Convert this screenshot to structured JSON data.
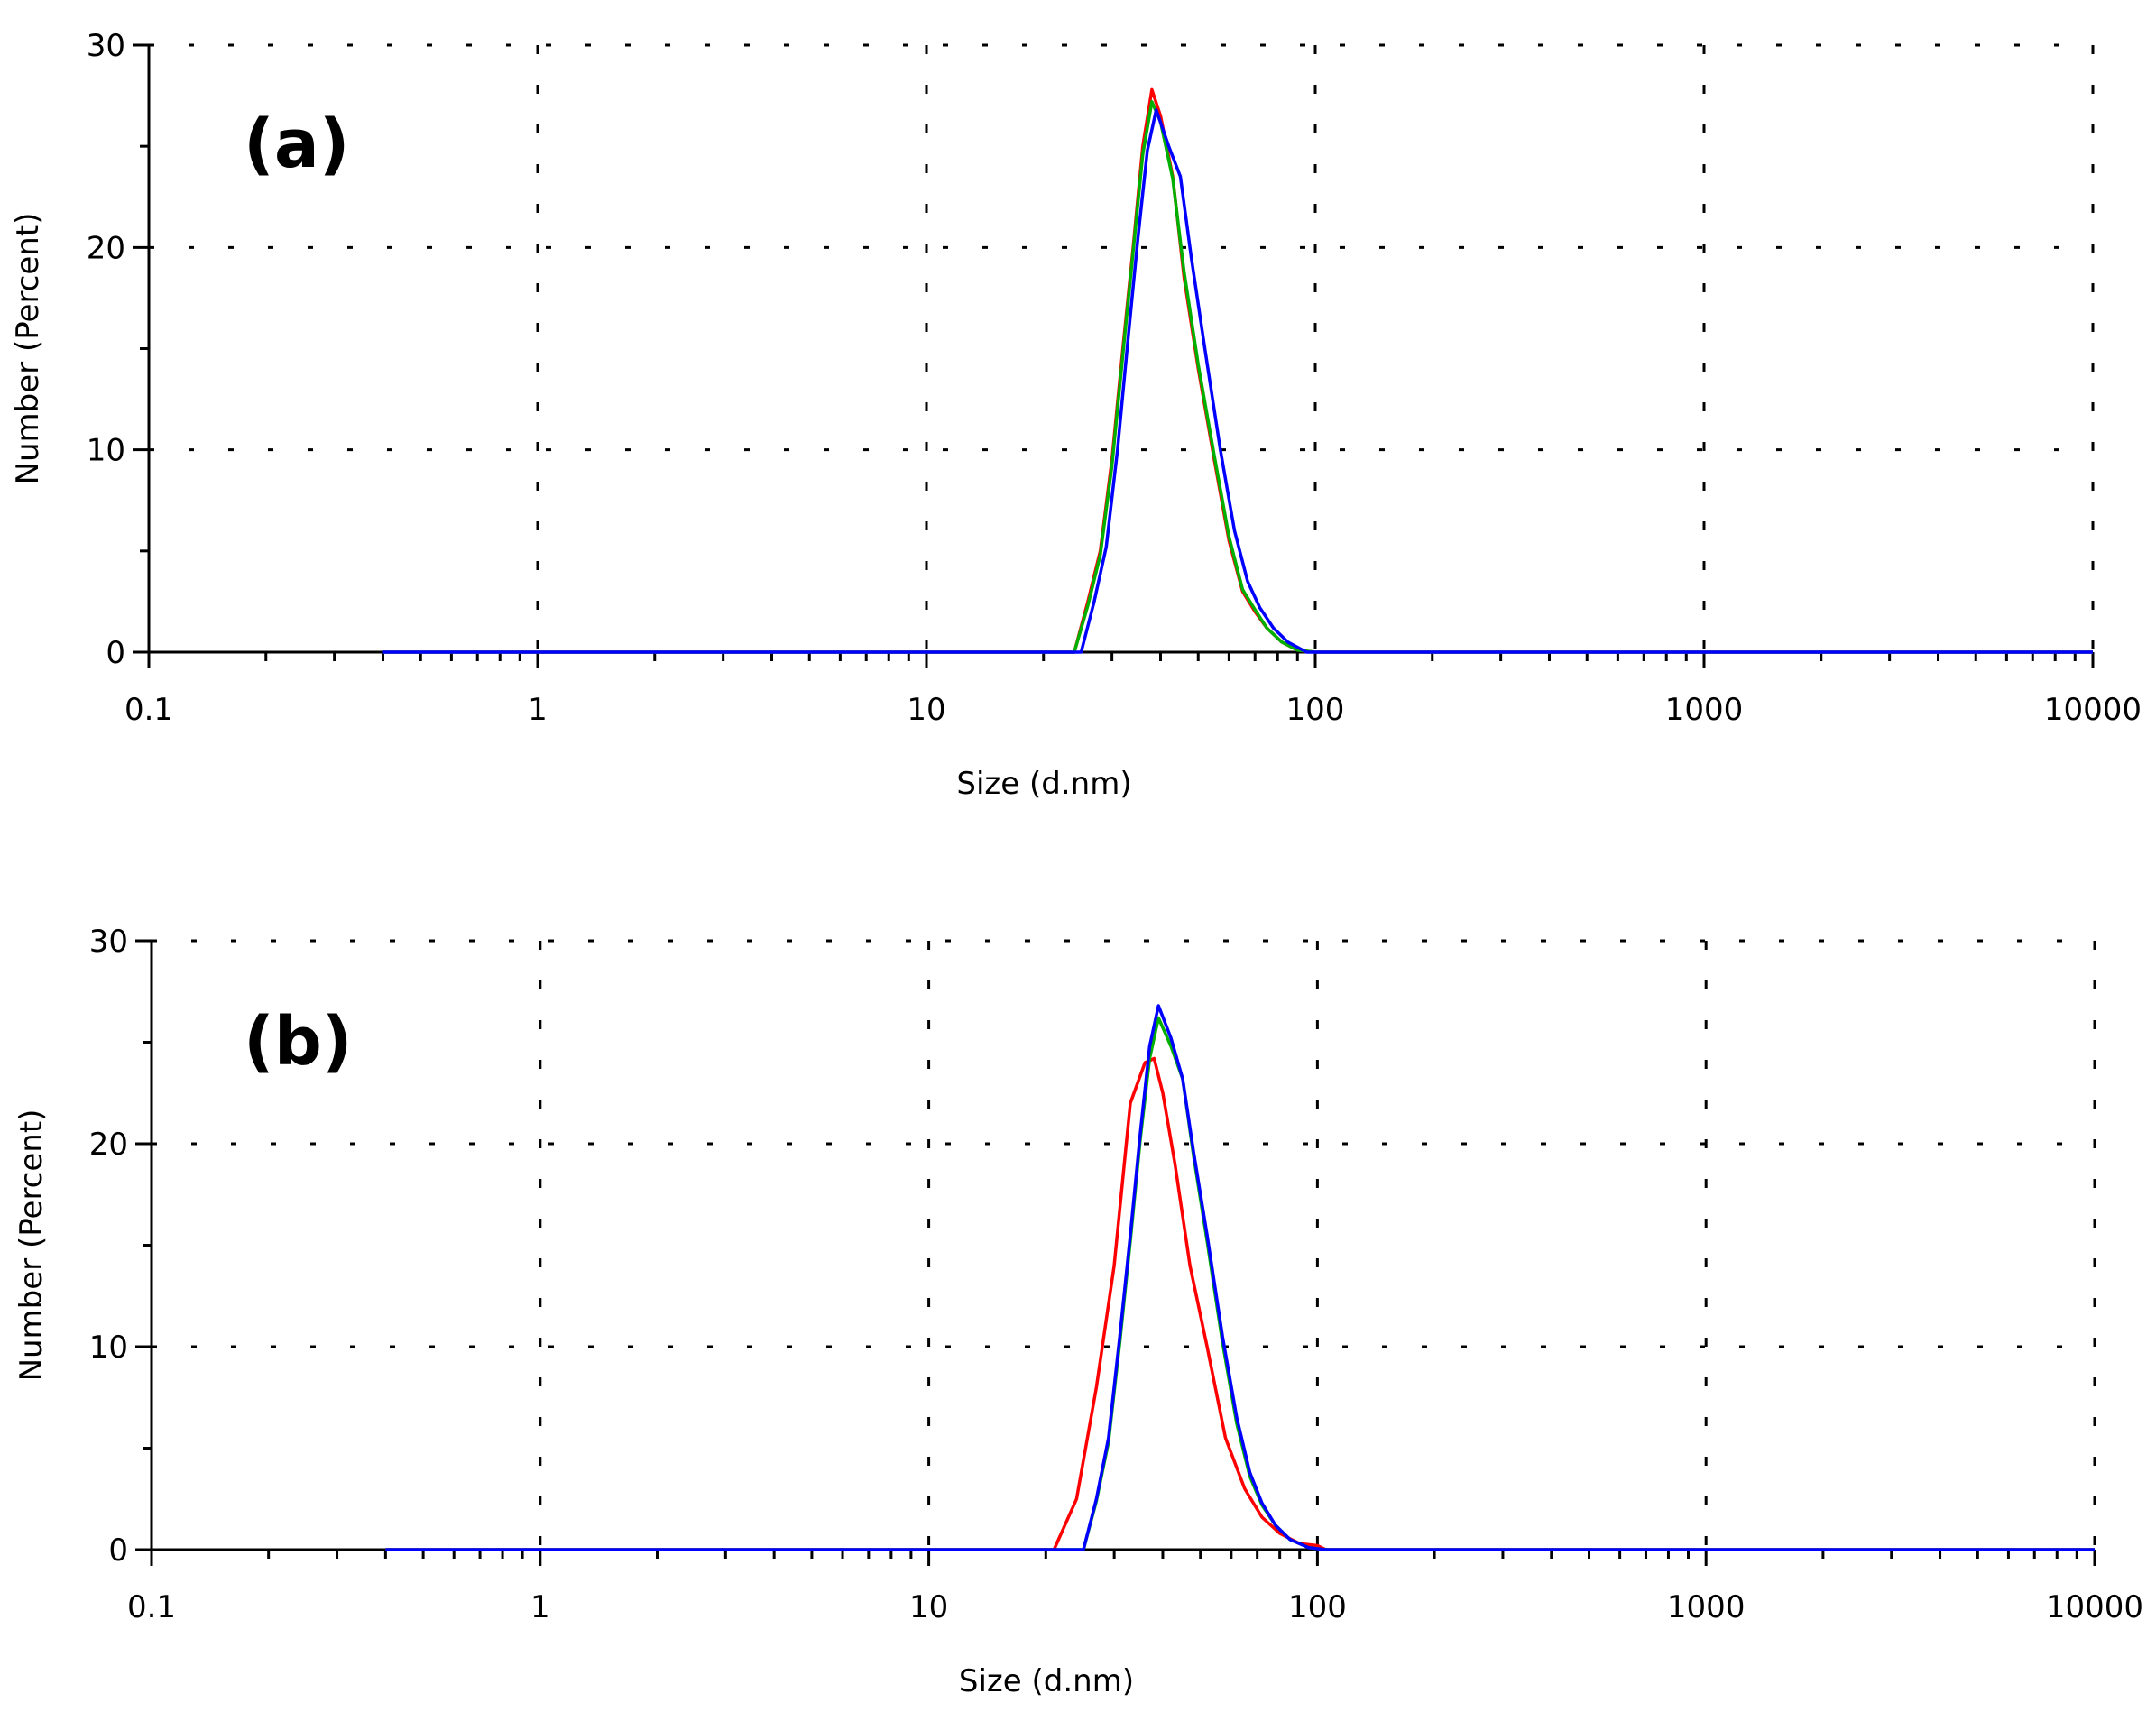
{
  "colors": {
    "red": "#ff0000",
    "green": "#00b000",
    "blue": "#0000ff",
    "grid": "#000000"
  },
  "chart_data": [
    {
      "type": "line",
      "panel_label": "(a)",
      "xlabel": "Size (d.nm)",
      "ylabel": "Number (Percent)",
      "xscale": "log",
      "xlim": [
        0.1,
        10000
      ],
      "ylim": [
        0,
        30
      ],
      "xticks": [
        0.1,
        1,
        10,
        100,
        1000,
        10000
      ],
      "xtick_labels": [
        "0.1",
        "1",
        "10",
        "100",
        "1000",
        "10000"
      ],
      "yticks": [
        0,
        10,
        20,
        30
      ],
      "ytick_labels": [
        "0",
        "10",
        "20",
        "30"
      ],
      "grid": true,
      "series": [
        {
          "color": "red",
          "x": [
            0.4,
            24,
            26,
            28,
            30,
            32,
            34,
            36,
            38,
            40,
            43,
            46,
            50,
            55,
            60,
            65,
            70,
            75,
            82,
            90,
            100,
            10000
          ],
          "y": [
            0,
            0,
            2.5,
            5,
            9.5,
            15,
            20,
            25,
            27.8,
            26.5,
            23.5,
            18.5,
            14,
            9.5,
            5.5,
            3,
            2,
            1.2,
            0.5,
            0.1,
            0,
            0
          ]
        },
        {
          "color": "green",
          "x": [
            0.4,
            24,
            26,
            28,
            30,
            32,
            34,
            36,
            38,
            40,
            43,
            46,
            50,
            55,
            60,
            65,
            70,
            75,
            82,
            90,
            100,
            10000
          ],
          "y": [
            0,
            0,
            2.3,
            4.8,
            9.2,
            14.7,
            19.8,
            24.6,
            27.2,
            26.2,
            23.4,
            18.8,
            14.2,
            9.7,
            5.7,
            3.1,
            2.1,
            1.2,
            0.5,
            0.1,
            0,
            0
          ]
        },
        {
          "color": "blue",
          "x": [
            0.4,
            25,
            27,
            29,
            31,
            33,
            35,
            37,
            39,
            42,
            45,
            48,
            52,
            57,
            62,
            67,
            72,
            78,
            85,
            95,
            10000
          ],
          "y": [
            0,
            0,
            2.5,
            5.2,
            10,
            15.5,
            20.5,
            24.8,
            26.8,
            25,
            23.5,
            19.5,
            15,
            10,
            6,
            3.5,
            2.2,
            1.2,
            0.5,
            0,
            0
          ]
        }
      ]
    },
    {
      "type": "line",
      "panel_label": "(b)",
      "xlabel": "Size (d.nm)",
      "ylabel": "Number (Percent)",
      "xscale": "log",
      "xlim": [
        0.1,
        10000
      ],
      "ylim": [
        0,
        30
      ],
      "xticks": [
        0.1,
        1,
        10,
        100,
        1000,
        10000
      ],
      "xtick_labels": [
        "0.1",
        "1",
        "10",
        "100",
        "1000",
        "10000"
      ],
      "yticks": [
        0,
        10,
        20,
        30
      ],
      "ytick_labels": [
        "0",
        "10",
        "20",
        "30"
      ],
      "grid": true,
      "series": [
        {
          "color": "red",
          "x": [
            0.4,
            21,
            24,
            27,
            30,
            33,
            36,
            38,
            40,
            43,
            47,
            52,
            58,
            65,
            72,
            80,
            90,
            100,
            105,
            10000
          ],
          "y": [
            0,
            0,
            2.5,
            8,
            14,
            22,
            24,
            24.2,
            22.5,
            19,
            14,
            10,
            5.5,
            3,
            1.6,
            0.8,
            0.3,
            0.2,
            0,
            0
          ]
        },
        {
          "color": "green",
          "x": [
            0.4,
            25,
            27,
            29,
            31,
            33,
            35,
            37,
            39,
            42,
            45,
            48,
            52,
            57,
            62,
            67,
            72,
            78,
            85,
            95,
            105,
            10000
          ],
          "y": [
            0,
            0,
            2.4,
            5.3,
            10.2,
            15.2,
            20.2,
            24.2,
            26.2,
            24.8,
            23.2,
            19.4,
            15.2,
            10.2,
            6.2,
            3.6,
            2.2,
            1.2,
            0.5,
            0.1,
            0,
            0
          ]
        },
        {
          "color": "blue",
          "x": [
            0.4,
            25,
            27,
            29,
            31,
            33,
            35,
            37,
            39,
            42,
            45,
            48,
            52,
            57,
            62,
            67,
            72,
            78,
            85,
            95,
            105,
            10000
          ],
          "y": [
            0,
            0,
            2.5,
            5.5,
            10.5,
            15.5,
            20.5,
            24.8,
            26.8,
            25.2,
            23.2,
            19.6,
            15.5,
            10.5,
            6.5,
            3.8,
            2.3,
            1.2,
            0.5,
            0.1,
            0,
            0
          ]
        }
      ]
    }
  ]
}
